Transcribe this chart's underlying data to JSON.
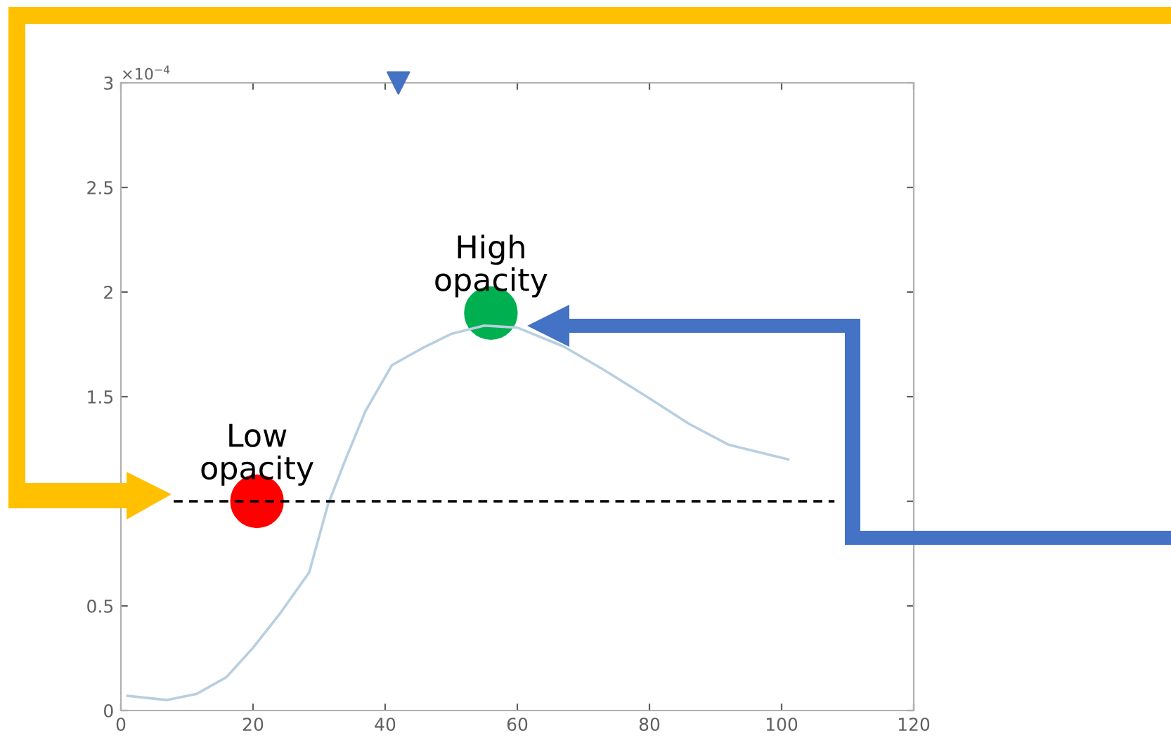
{
  "chart_data": {
    "type": "line",
    "xlim": [
      0,
      120
    ],
    "xticks": [
      0,
      20,
      40,
      60,
      80,
      100,
      120
    ],
    "ylim": [
      0,
      3
    ],
    "yticks": [
      0,
      0.5,
      {
        "value": 1,
        "label": null
      },
      1.5,
      2,
      2.5,
      3
    ],
    "grid": false,
    "legend": false,
    "series": [
      {
        "color": "#b8cfe0",
        "marker": "none",
        "line_style": "solid",
        "x": [
          1,
          7,
          11.5,
          16,
          20,
          24,
          28.5,
          31.3,
          34,
          37,
          41,
          45.5,
          50,
          55,
          60,
          67,
          73,
          79.6,
          86,
          92,
          101
        ],
        "values": [
          0.07,
          0.05,
          0.08,
          0.16,
          0.3,
          0.46,
          0.66,
          0.98,
          1.2,
          1.43,
          1.65,
          1.73,
          1.8,
          1.84,
          1.83,
          1.74,
          1.63,
          1.5,
          1.37,
          1.27,
          1.2
        ]
      },
      {
        "color": "#000000",
        "marker": "none",
        "line_style": "dashed",
        "x": [
          8,
          108
        ],
        "values": [
          1,
          1
        ]
      },
      {
        "type": "scatter",
        "color": "#ff0000",
        "marker": "circle",
        "x": [
          20.6
        ],
        "values": [
          1
        ]
      },
      {
        "type": "scatter",
        "color": "#00b050",
        "marker": "circle",
        "x": [
          56
        ],
        "values": [
          1.9
        ]
      },
      {
        "type": "scatter",
        "color": "#4472c4",
        "marker": "triangle",
        "x": [
          42
        ],
        "values": [
          3
        ]
      }
    ],
    "annotations": [
      "×10$^{−4}$",
      {
        "text": "High\nopacity",
        "x": 56,
        "y": 1.9
      },
      {
        "text": "Low\nopacity",
        "x": 20.6,
        "y": 1
      }
    ]
  }
}
